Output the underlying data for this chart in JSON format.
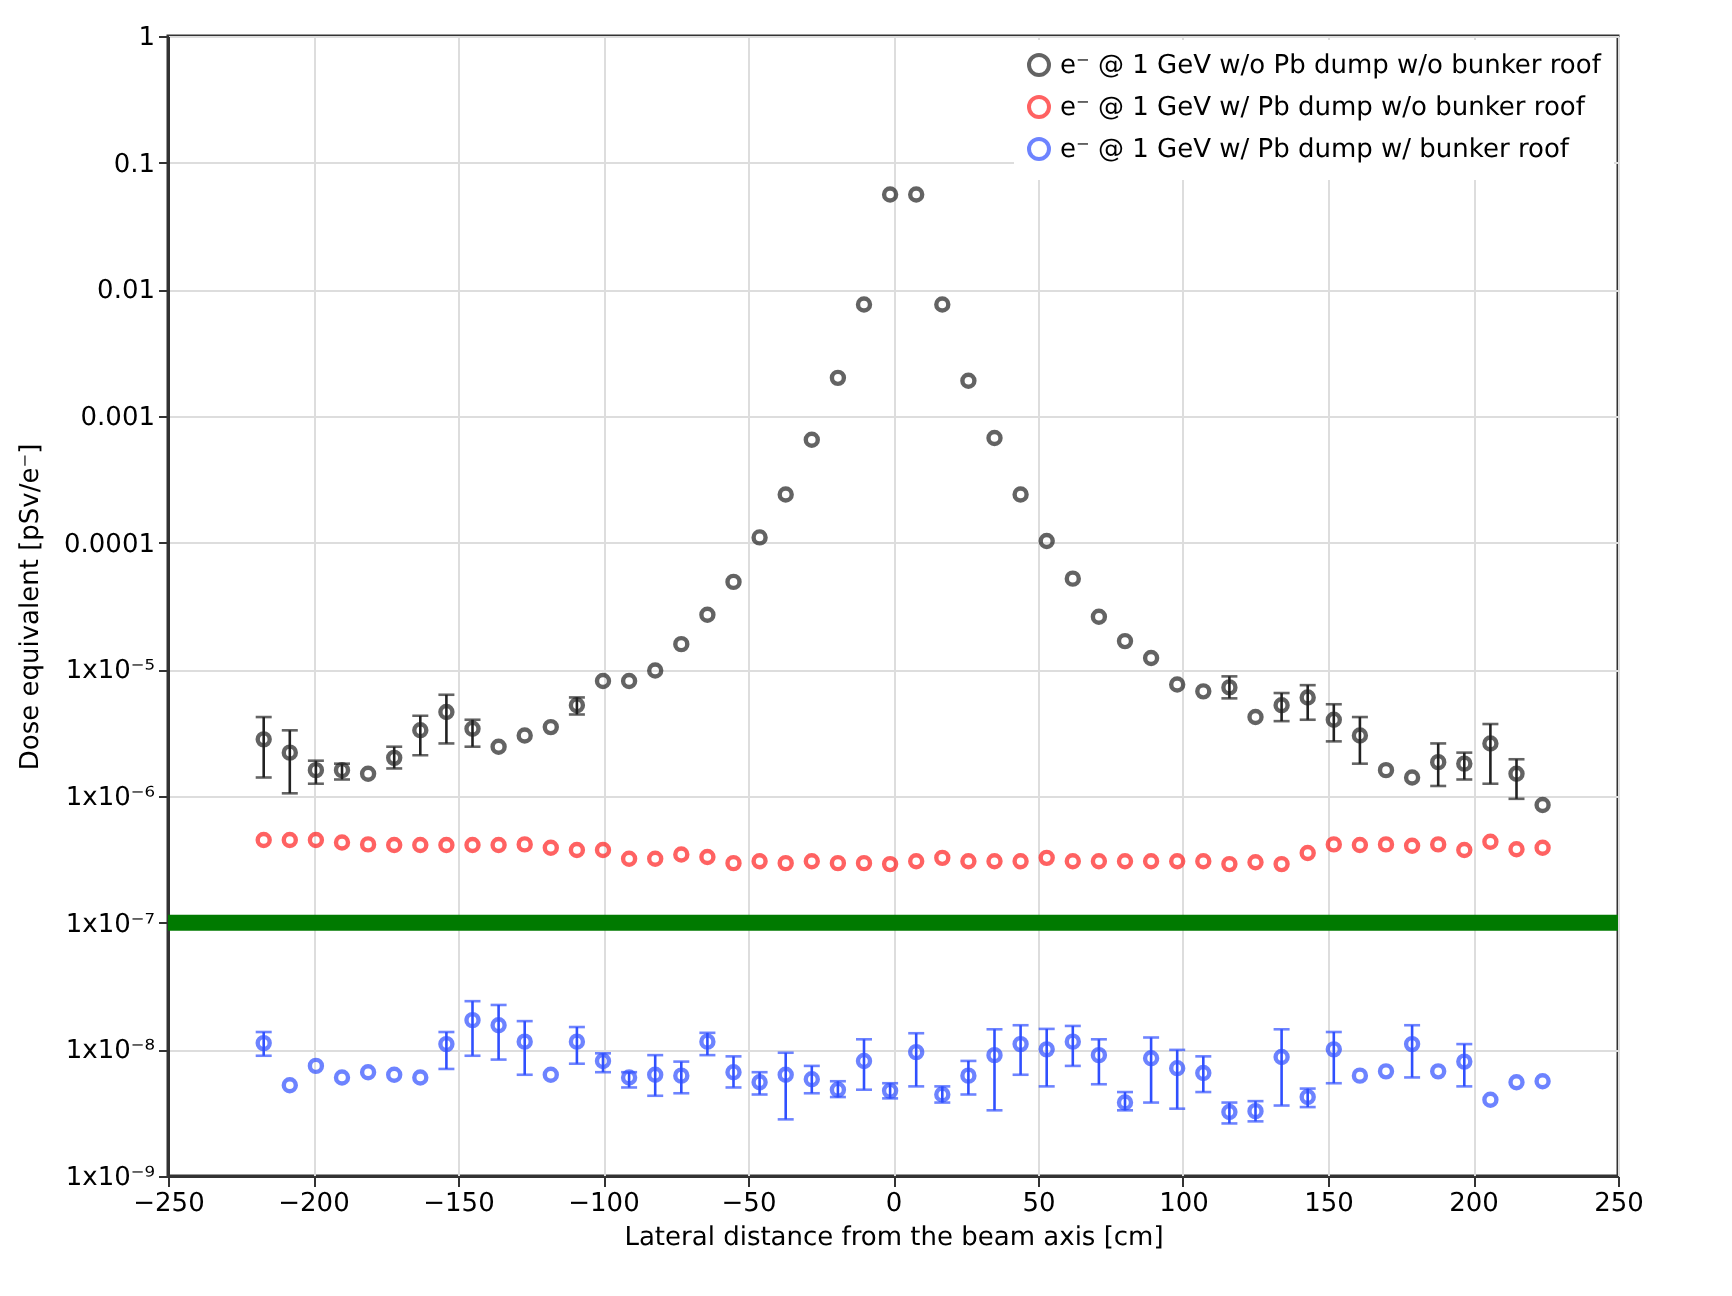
{
  "chart_data": {
    "type": "scatter",
    "xlabel": "Lateral distance from the beam axis [cm]",
    "ylabel": "Dose equivalent [pSv/e⁻]",
    "x": [
      -217,
      -208,
      -199,
      -190,
      -181,
      -172,
      -163,
      -154,
      -145,
      -136,
      -127,
      -118,
      -109,
      -100,
      -91,
      -82,
      -73,
      -64,
      -55,
      -46,
      -37,
      -28,
      -19,
      -10,
      -1,
      8,
      17,
      26,
      35,
      44,
      53,
      62,
      71,
      80,
      89,
      98,
      107,
      116,
      125,
      134,
      143,
      152,
      161,
      170,
      179,
      188,
      197,
      206,
      215,
      224
    ],
    "series": [
      {
        "name": "e⁻ @ 1 GeV w/o Pb dump w/o bunker roof",
        "color": "#222222",
        "values": [
          2.8e-06,
          2.2e-06,
          1.6e-06,
          1.6e-06,
          1.5e-06,
          2e-06,
          3.3e-06,
          4.6e-06,
          3.4e-06,
          2.45e-06,
          3e-06,
          3.5e-06,
          5.2e-06,
          8.1e-06,
          8.1e-06,
          9.8e-06,
          1.58e-05,
          2.7e-05,
          4.9e-05,
          0.00011,
          0.00024,
          0.00065,
          0.002,
          0.0076,
          0.056,
          0.056,
          0.0076,
          0.0019,
          0.00067,
          0.00024,
          0.000103,
          5.2e-05,
          2.6e-05,
          1.67e-05,
          1.23e-05,
          7.6e-06,
          6.7e-06,
          7.2e-06,
          4.2e-06,
          5.2e-06,
          6e-06,
          4e-06,
          3e-06,
          1.6e-06,
          1.4e-06,
          1.85e-06,
          1.8e-06,
          2.6e-06,
          1.5e-06,
          8.5e-07
        ],
        "errors": [
          [
            1.4e-06,
            4.2e-06
          ],
          [
            1.05e-06,
            3.3e-06
          ],
          [
            1.25e-06,
            1.9e-06
          ],
          [
            1.35e-06,
            1.8e-06
          ],
          null,
          [
            1.65e-06,
            2.45e-06
          ],
          [
            2.1e-06,
            4.3e-06
          ],
          [
            2.6e-06,
            6.3e-06
          ],
          [
            2.45e-06,
            4e-06
          ],
          null,
          null,
          null,
          [
            4.4e-06,
            6e-06
          ],
          null,
          null,
          null,
          null,
          null,
          null,
          null,
          null,
          null,
          null,
          null,
          null,
          null,
          null,
          null,
          null,
          null,
          null,
          null,
          null,
          null,
          null,
          null,
          null,
          [
            5.9e-06,
            8.8e-06
          ],
          null,
          [
            3.9e-06,
            6.5e-06
          ],
          [
            4e-06,
            7.5e-06
          ],
          [
            2.7e-06,
            5.3e-06
          ],
          [
            1.8e-06,
            4.2e-06
          ],
          null,
          null,
          [
            1.2e-06,
            2.6e-06
          ],
          [
            1.35e-06,
            2.2e-06
          ],
          [
            1.25e-06,
            3.7e-06
          ],
          [
            9.5e-07,
            1.95e-06
          ],
          null
        ]
      },
      {
        "name": "e⁻ @ 1 GeV w/ Pb dump w/o bunker roof",
        "color": "#ff2020",
        "values": [
          4.5e-07,
          4.5e-07,
          4.5e-07,
          4.3e-07,
          4.15e-07,
          4.1e-07,
          4.1e-07,
          4.1e-07,
          4.1e-07,
          4.1e-07,
          4.15e-07,
          3.9e-07,
          3.75e-07,
          3.75e-07,
          3.2e-07,
          3.2e-07,
          3.45e-07,
          3.3e-07,
          2.95e-07,
          3.05e-07,
          2.95e-07,
          3.05e-07,
          2.95e-07,
          2.95e-07,
          2.9e-07,
          3.05e-07,
          3.25e-07,
          3.05e-07,
          3.05e-07,
          3.05e-07,
          3.25e-07,
          3.05e-07,
          3.05e-07,
          3.05e-07,
          3.05e-07,
          3.05e-07,
          3.05e-07,
          2.9e-07,
          3e-07,
          2.9e-07,
          3.55e-07,
          4.15e-07,
          4.1e-07,
          4.15e-07,
          4.05e-07,
          4.15e-07,
          3.75e-07,
          4.35e-07,
          3.8e-07,
          3.9e-07
        ]
      },
      {
        "name": "e⁻ @ 1 GeV w/ Pb dump w/ bunker roof",
        "color": "#3050ff",
        "values": [
          1.12e-08,
          5.2e-09,
          7.4e-09,
          6e-09,
          6.6e-09,
          6.3e-09,
          6e-09,
          1.1e-08,
          1.7e-08,
          1.55e-08,
          1.15e-08,
          6.3e-09,
          1.15e-08,
          8.1e-09,
          6e-09,
          6.3e-09,
          6.2e-09,
          1.15e-08,
          6.6e-09,
          5.5e-09,
          6.3e-09,
          5.8e-09,
          4.8e-09,
          8.1e-09,
          4.7e-09,
          9.5e-09,
          4.4e-09,
          6.2e-09,
          9e-09,
          1.1e-08,
          1e-08,
          1.15e-08,
          9e-09,
          3.8e-09,
          8.5e-09,
          7.1e-09,
          6.5e-09,
          3.2e-09,
          3.25e-09,
          8.7e-09,
          4.2e-09,
          1e-08,
          6.2e-09,
          6.7e-09,
          1.1e-08,
          6.7e-09,
          8e-09,
          4e-09,
          5.5e-09,
          5.6e-09
        ],
        "errors": [
          [
            8.9e-09,
            1.37e-08
          ],
          null,
          null,
          null,
          null,
          null,
          null,
          [
            7e-09,
            1.37e-08
          ],
          [
            8.9e-09,
            2.4e-08
          ],
          [
            8.3e-09,
            2.24e-08
          ],
          [
            6.3e-09,
            1.67e-08
          ],
          null,
          [
            7.7e-09,
            1.5e-08
          ],
          [
            6.6e-09,
            9.3e-09
          ],
          [
            5e-09,
            6.6e-09
          ],
          [
            4.3e-09,
            9e-09
          ],
          [
            4.5e-09,
            8e-09
          ],
          [
            9e-09,
            1.35e-08
          ],
          [
            5e-09,
            8.8e-09
          ],
          [
            4.4e-09,
            6.6e-09
          ],
          [
            2.8e-09,
            9.4e-09
          ],
          [
            4.5e-09,
            7.4e-09
          ],
          [
            4.2e-09,
            5.6e-09
          ],
          [
            4.8e-09,
            1.2e-08
          ],
          [
            4.1e-09,
            5.4e-09
          ],
          [
            5.1e-09,
            1.34e-08
          ],
          [
            3.8e-09,
            5.1e-09
          ],
          [
            4.4e-09,
            8.1e-09
          ],
          [
            3.3e-09,
            1.44e-08
          ],
          [
            6.3e-09,
            1.55e-08
          ],
          [
            5.1e-09,
            1.45e-08
          ],
          [
            7.4e-09,
            1.53e-08
          ],
          [
            5.3e-09,
            1.2e-08
          ],
          [
            3.3e-09,
            4.6e-09
          ],
          [
            3.8e-09,
            1.24e-08
          ],
          [
            3.4e-09,
            9.9e-09
          ],
          [
            4.6e-09,
            8.8e-09
          ],
          [
            2.6e-09,
            3.8e-09
          ],
          [
            2.7e-09,
            3.9e-09
          ],
          [
            3.6e-09,
            1.44e-08
          ],
          [
            3.5e-09,
            4.9e-09
          ],
          [
            5.4e-09,
            1.37e-08
          ],
          null,
          null,
          [
            6e-09,
            1.55e-08
          ],
          null,
          [
            5.1e-09,
            1.1e-08
          ],
          null,
          null,
          null
        ]
      }
    ],
    "xlim": [
      -250,
      250
    ],
    "xticks": [
      -250,
      -200,
      -150,
      -100,
      -50,
      0,
      50,
      100,
      150,
      200,
      250
    ],
    "ylim": [
      1e-09,
      1
    ],
    "yticks": [
      {
        "value": 1e-09,
        "label": "1x10⁻⁹"
      },
      {
        "value": 1e-08,
        "label": "1x10⁻⁸"
      },
      {
        "value": 1e-07,
        "label": "1x10⁻⁷"
      },
      {
        "value": 1e-06,
        "label": "1x10⁻⁶"
      },
      {
        "value": 1e-05,
        "label": "1x10⁻⁵"
      },
      0.0001,
      0.001,
      0.01,
      0.1,
      1
    ],
    "log": true,
    "grid": true,
    "legend": "top right",
    "marker": "circle",
    "ref_lines": [
      {
        "axis": "y",
        "value": 1e-07,
        "color": "#007a00"
      }
    ]
  }
}
